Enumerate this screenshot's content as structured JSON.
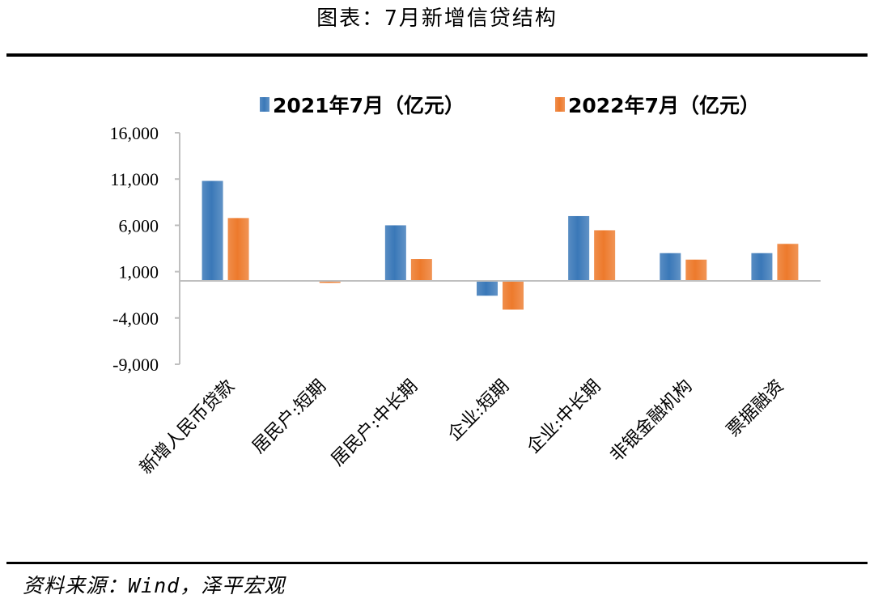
{
  "figure": {
    "title": "图表：7月新增信贷结构",
    "source": "资料来源：Wind，泽平宏观"
  },
  "colors": {
    "series_2021": "#3a78b8",
    "series_2022": "#ed7a2c",
    "axis": "#bfbfbf"
  },
  "chart_data": {
    "type": "bar",
    "title": "",
    "xlabel": "",
    "ylabel": "",
    "ylim": [
      -9000,
      16000
    ],
    "yticks": [
      16000,
      11000,
      6000,
      1000,
      -4000,
      -9000
    ],
    "ytick_labels": [
      "16,000",
      "11,000",
      "6,000",
      "1,000",
      "-4,000",
      "-9,000"
    ],
    "categories": [
      "新增人民币贷款",
      "居民户:短期",
      "居民户:中长期",
      "企业:短期",
      "企业:中长期",
      "非银金融机构",
      "票据融资"
    ],
    "series": [
      {
        "name": "2021年7月（亿元）",
        "values": [
          10800,
          0,
          6000,
          -1600,
          7000,
          3000,
          3000
        ]
      },
      {
        "name": "2022年7月（亿元）",
        "values": [
          6790,
          -217,
          2360,
          -3100,
          5470,
          2300,
          4000
        ]
      }
    ],
    "grid": false,
    "legend_position": "top"
  }
}
